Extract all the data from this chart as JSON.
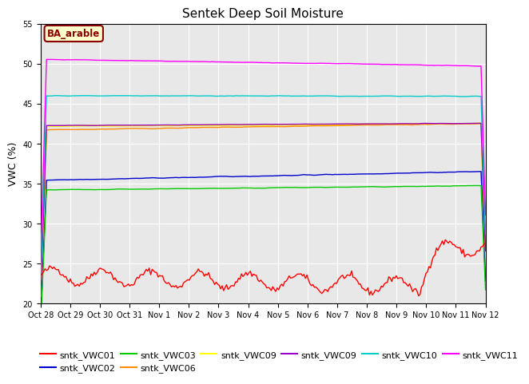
{
  "title": "Sentek Deep Soil Moisture",
  "ylabel": "VWC (%)",
  "ylim": [
    20,
    55
  ],
  "yticks": [
    20,
    25,
    30,
    35,
    40,
    45,
    50,
    55
  ],
  "annotation_text": "BA_arable",
  "annotation_color": "#8B0000",
  "annotation_bg": "#FFFFCC",
  "background_color": "#E8E8E8",
  "series": {
    "sntk_VWC01": {
      "color": "#FF0000",
      "label": "sntk_VWC01"
    },
    "sntk_VWC02": {
      "color": "#0000CC",
      "label": "sntk_VWC02"
    },
    "sntk_VWC03": {
      "color": "#00CC00",
      "label": "sntk_VWC03"
    },
    "sntk_VWC06": {
      "color": "#FF8C00",
      "label": "sntk_VWC06"
    },
    "sntk_VWC09": {
      "color": "#FFFF00",
      "label": "sntk_VWC09"
    },
    "sntk_VWC09b": {
      "color": "#9900CC",
      "label": "sntk_VWC09"
    },
    "sntk_VWC10": {
      "color": "#00CCCC",
      "label": "sntk_VWC10"
    },
    "sntk_VWC11": {
      "color": "#FF00FF",
      "label": "sntk_VWC11"
    }
  },
  "n_points": 300,
  "legend_ncol": 6
}
